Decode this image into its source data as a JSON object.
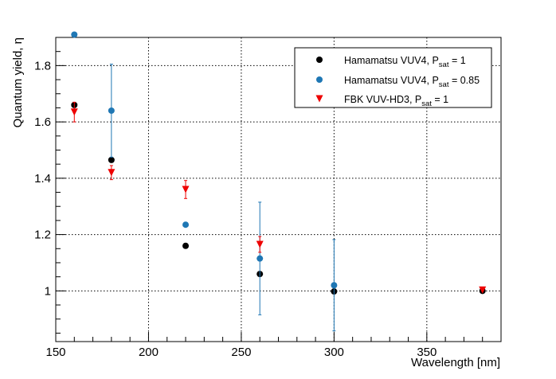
{
  "chart_data": {
    "type": "scatter",
    "title": "",
    "xlabel": "Wavelength [nm]",
    "ylabel": "Quantum yield, η",
    "xlim": [
      150,
      390
    ],
    "ylim": [
      0.82,
      1.9
    ],
    "x_ticks": [
      150,
      200,
      250,
      300,
      350
    ],
    "y_ticks": [
      1,
      1.2,
      1.4,
      1.6,
      1.8
    ],
    "grid": true,
    "legend_position": "top-right",
    "series": [
      {
        "name": "Hamamatsu VUV4, P_sat = 1",
        "legend_main": "Hamamatsu VUV4, P",
        "legend_sub": "sat",
        "legend_tail": " = 1",
        "color": "#000000",
        "marker": "circle",
        "points": [
          {
            "x": 160,
            "y": 1.66,
            "err": 0
          },
          {
            "x": 180,
            "y": 1.465,
            "err": 0
          },
          {
            "x": 220,
            "y": 1.16,
            "err": 0
          },
          {
            "x": 260,
            "y": 1.06,
            "err": 0
          },
          {
            "x": 300,
            "y": 0.998,
            "err": 0
          },
          {
            "x": 380,
            "y": 1.0,
            "err": 0
          }
        ]
      },
      {
        "name": "Hamamatsu VUV4, P_sat = 0.85",
        "legend_main": "Hamamatsu VUV4, P",
        "legend_sub": "sat",
        "legend_tail": " = 0.85",
        "color": "#1f77b4",
        "marker": "circle",
        "points": [
          {
            "x": 160,
            "y": 1.91,
            "err": 0
          },
          {
            "x": 180,
            "y": 1.64,
            "err": 0.165
          },
          {
            "x": 220,
            "y": 1.235,
            "err": 0
          },
          {
            "x": 260,
            "y": 1.115,
            "err": 0.2
          },
          {
            "x": 300,
            "y": 1.02,
            "err": 0.162
          }
        ]
      },
      {
        "name": "FBK VUV-HD3, P_sat = 1",
        "legend_main": "FBK VUV-HD3, P",
        "legend_sub": "sat",
        "legend_tail": " = 1",
        "color": "#ee0000",
        "marker": "triangle-down",
        "points": [
          {
            "x": 160,
            "y": 1.635,
            "err": 0.035
          },
          {
            "x": 180,
            "y": 1.42,
            "err": 0.025
          },
          {
            "x": 220,
            "y": 1.36,
            "err": 0.032
          },
          {
            "x": 260,
            "y": 1.165,
            "err": 0.028
          },
          {
            "x": 380,
            "y": 1.003,
            "err": 0
          }
        ]
      }
    ]
  }
}
